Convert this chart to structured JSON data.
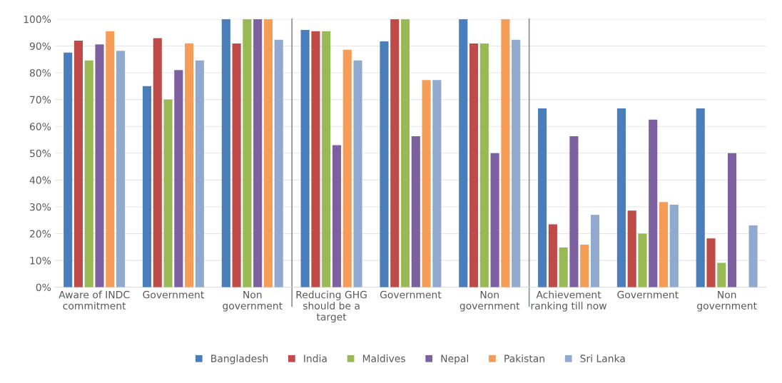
{
  "chart_data": {
    "type": "bar",
    "categories": [
      "Aware of INDC\ncommitment",
      "Government",
      "Non\ngovernment",
      "Reducing GHG\nshould be a\ntarget",
      "Government",
      "Non\ngovernment",
      "Achievement\nranking till now",
      "Government",
      "Non\ngovernment"
    ],
    "series": [
      {
        "name": "Bangladesh",
        "color": "#4a7ebb",
        "values": [
          87.5,
          75,
          100,
          96,
          91.7,
          100,
          66.7,
          66.7,
          66.7
        ]
      },
      {
        "name": "India",
        "color": "#be4b48",
        "values": [
          92,
          92.9,
          90.9,
          95.5,
          100,
          90.9,
          23.5,
          28.6,
          18.2
        ]
      },
      {
        "name": "Maldives",
        "color": "#98b954",
        "values": [
          84.6,
          70,
          100,
          95.5,
          100,
          90.9,
          14.8,
          20,
          9.1
        ]
      },
      {
        "name": "Nepal",
        "color": "#7d60a0",
        "values": [
          90.6,
          81,
          100,
          53,
          56.3,
          50,
          56.3,
          62.5,
          50
        ]
      },
      {
        "name": "Pakistan",
        "color": "#f59d56",
        "values": [
          95.5,
          91,
          100,
          88.6,
          77.3,
          100,
          15.9,
          31.8,
          0
        ]
      },
      {
        "name": "Sri Lanka",
        "color": "#92a9cf",
        "values": [
          88.2,
          84.6,
          92.3,
          84.6,
          77.3,
          92.3,
          27,
          30.8,
          23.1
        ]
      }
    ],
    "ylim": [
      0,
      100
    ],
    "yticks": [
      {
        "value": 0,
        "label": "0%"
      },
      {
        "value": 10,
        "label": "10%"
      },
      {
        "value": 20,
        "label": "20%"
      },
      {
        "value": 30,
        "label": "30%"
      },
      {
        "value": 40,
        "label": "40%"
      },
      {
        "value": 50,
        "label": "50%"
      },
      {
        "value": 60,
        "label": "60%"
      },
      {
        "value": 70,
        "label": "70%"
      },
      {
        "value": 80,
        "label": "80%"
      },
      {
        "value": 90,
        "label": "90%"
      },
      {
        "value": 100,
        "label": "100%"
      }
    ],
    "grid": "y",
    "legend": "bottom"
  }
}
